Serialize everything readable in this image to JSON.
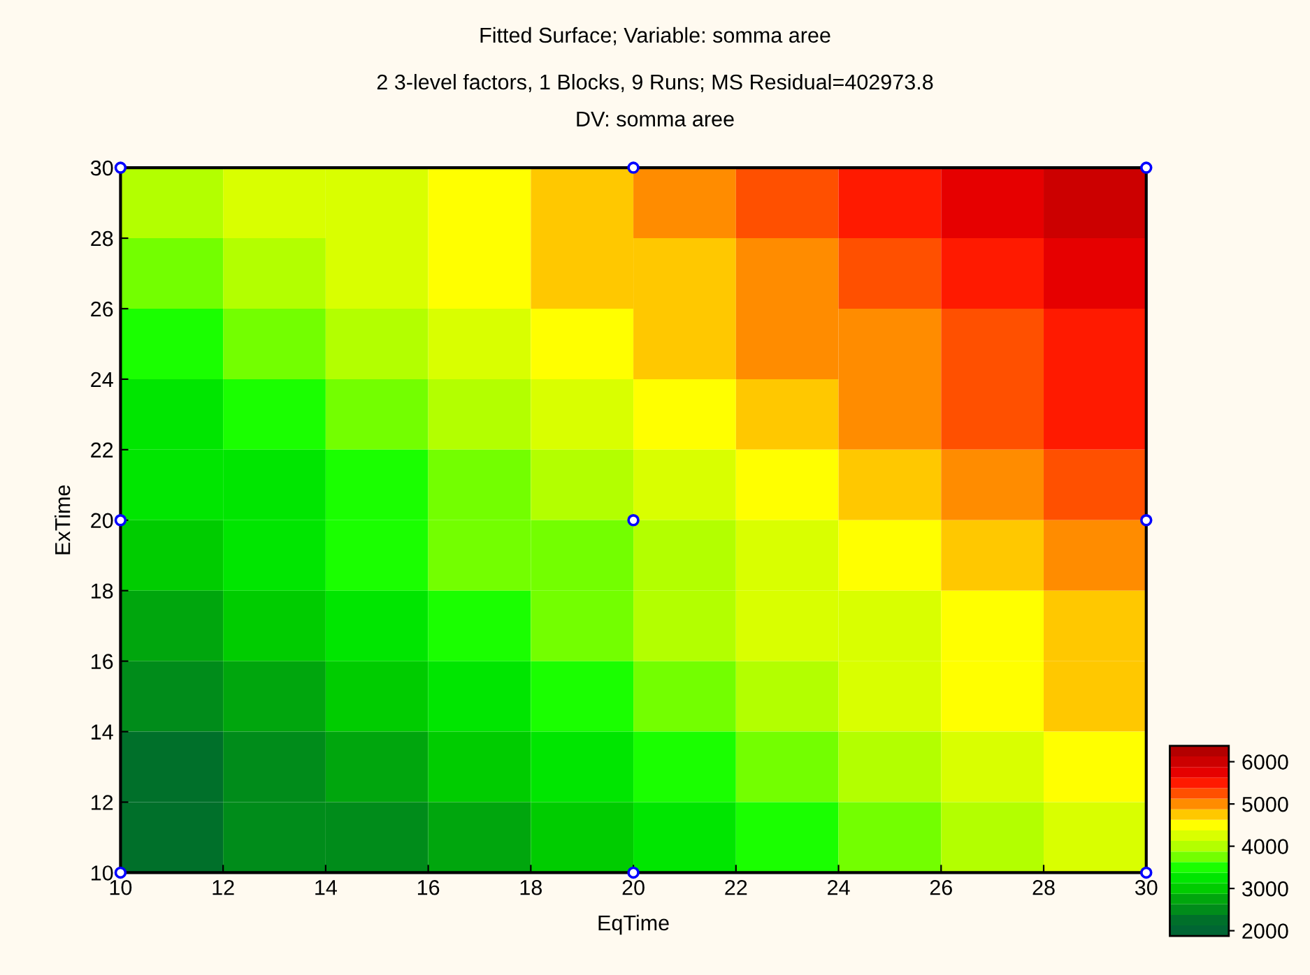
{
  "chart_data": {
    "type": "heatmap",
    "title": "Fitted Surface; Variable: somma aree",
    "subtitle": "2 3-level factors, 1 Blocks, 9 Runs; MS Residual=402973.8\nDV: somma aree",
    "xlabel": "EqTime",
    "ylabel": "ExTime",
    "x": [
      11,
      13,
      15,
      17,
      19,
      21,
      23,
      25,
      27,
      29
    ],
    "y": [
      29,
      27,
      25,
      23,
      21,
      19,
      17,
      15,
      13,
      11
    ],
    "cells": [
      [
        3900,
        4150,
        4350,
        4600,
        4800,
        5050,
        5250,
        5500,
        5700,
        5950
      ],
      [
        3700,
        3950,
        4200,
        4400,
        4650,
        4850,
        5100,
        5300,
        5550,
        5750
      ],
      [
        3550,
        3750,
        4000,
        4200,
        4450,
        4650,
        4900,
        5100,
        5350,
        5550
      ],
      [
        3350,
        3550,
        3800,
        4000,
        4250,
        4450,
        4700,
        4950,
        5150,
        5400
      ],
      [
        3150,
        3350,
        3600,
        3800,
        4050,
        4300,
        4500,
        4750,
        4950,
        5200
      ],
      [
        2950,
        3150,
        3400,
        3650,
        3850,
        4100,
        4300,
        4550,
        4800,
        5000
      ],
      [
        2750,
        2950,
        3200,
        3450,
        3650,
        3900,
        4150,
        4350,
        4600,
        4800
      ],
      [
        2550,
        2800,
        3000,
        3250,
        3450,
        3700,
        3950,
        4150,
        4400,
        4650
      ],
      [
        2350,
        2600,
        2800,
        3050,
        3300,
        3500,
        3750,
        4000,
        4200,
        4450
      ],
      [
        2150,
        2400,
        2600,
        2850,
        3100,
        3300,
        3550,
        3800,
        4000,
        4250
      ]
    ],
    "colors": [
      "#006633",
      "#00702a",
      "#008c1a",
      "#00a60d",
      "#00cc00",
      "#00e600",
      "#1aff00",
      "#73ff00",
      "#b3ff00",
      "#d9ff00",
      "#ffff00",
      "#ffc800",
      "#ff8c00",
      "#ff5000",
      "#ff1a00",
      "#e60000",
      "#cc0000",
      "#b30000"
    ],
    "clim": [
      1875,
      6375
    ],
    "cticks": [
      6000,
      5000,
      4000,
      3000,
      2000
    ],
    "series": [
      {
        "type": "scatter",
        "x": [
          10,
          10,
          10,
          20,
          20,
          20,
          30,
          30,
          30
        ],
        "values": [
          10,
          20,
          30,
          10,
          20,
          30,
          10,
          20,
          30
        ],
        "color": "#0000ff",
        "marker": "circle"
      }
    ],
    "xlim": [
      10,
      30
    ],
    "ylim": [
      10,
      30
    ],
    "xticks": [
      10,
      12,
      14,
      16,
      18,
      20,
      22,
      24,
      26,
      28,
      30
    ],
    "yticks": [
      10,
      12,
      14,
      16,
      18,
      20,
      22,
      24,
      26,
      28,
      30
    ],
    "grid": false
  }
}
